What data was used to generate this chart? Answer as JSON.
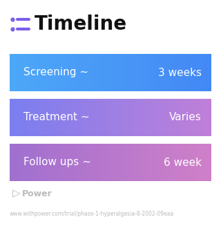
{
  "title": "Timeline",
  "background_color": "#ffffff",
  "rows": [
    {
      "label": "Screening ~",
      "value": "3 weeks",
      "color_left": "#4da8f8",
      "color_right": "#4488f5"
    },
    {
      "label": "Treatment ~",
      "value": "Varies",
      "color_left": "#7b7ef0",
      "color_right": "#c080d8"
    },
    {
      "label": "Follow ups ~",
      "value": "6 week",
      "color_left": "#a070d0",
      "color_right": "#d080c8"
    }
  ],
  "footer_logo_text": "Power",
  "footer_url": "www.withpower.com/trial/phase-1-hyperalgesia-8-2002-09eaa",
  "title_fontsize": 20,
  "row_label_fontsize": 11,
  "row_value_fontsize": 11,
  "url_fontsize": 5.5,
  "footer_fontsize": 9,
  "icon_color": "#7b5eea",
  "icon_line_color": "#7b5eea",
  "footer_color": "#bbbbbb"
}
